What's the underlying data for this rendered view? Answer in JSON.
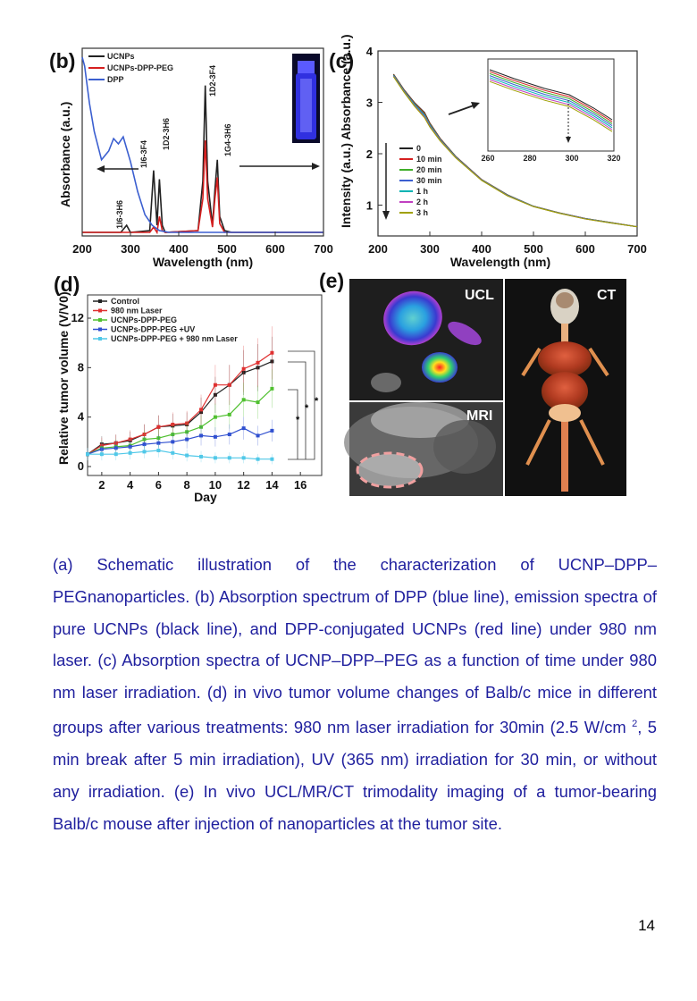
{
  "figure": {
    "panel_b": {
      "label": "(b)",
      "legend": [
        "UCNPs",
        "UCNPs-DPP-PEG",
        "DPP"
      ],
      "colors": {
        "UCNPs": "#222222",
        "UCNPs-DPP-PEG": "#d62020",
        "DPP": "#3b5fd0"
      },
      "xlabel": "Wavelength (nm)",
      "ylabel": "Absorbance (a.u.)",
      "xticks": [
        "200",
        "300",
        "400",
        "500",
        "600",
        "700"
      ],
      "transitions": [
        "1I6-3H6",
        "1I6-3F4",
        "1D2-3H6",
        "1D2-3F4",
        "1G4-3H6"
      ]
    },
    "panel_c": {
      "label": "(c)",
      "ylabel": "Intensity (a.u.) Absorbance (a.u.)",
      "xlabel": "Wavelength (nm)",
      "xticks": [
        "200",
        "300",
        "400",
        "500",
        "600",
        "700"
      ],
      "yticks": [
        "1",
        "2",
        "3",
        "4"
      ],
      "legend": [
        "0",
        "10 min",
        "20 min",
        "30 min",
        "1 h",
        "2 h",
        "3 h"
      ],
      "colors": [
        "#222222",
        "#d62020",
        "#3fae2a",
        "#3b5fd0",
        "#00b3b3",
        "#c040c0",
        "#a0a000"
      ],
      "inset_xticks": [
        "260",
        "280",
        "300",
        "320"
      ]
    },
    "panel_d": {
      "label": "(d)",
      "ylabel": "Relative tumor volume (V/V0)",
      "xlabel": "Day",
      "xticks": [
        "2",
        "4",
        "6",
        "8",
        "10",
        "12",
        "14",
        "16"
      ],
      "yticks": [
        "0",
        "4",
        "8",
        "12"
      ],
      "significance": [
        "*",
        "*",
        "*"
      ]
    },
    "panel_e": {
      "label": "(e)",
      "labels": [
        "UCL",
        "CT",
        "MRI"
      ]
    }
  },
  "chart_data": [
    {
      "type": "line",
      "title": "",
      "xlabel": "Wavelength (nm)",
      "ylabel": "Absorbance (a.u.)",
      "xlim": [
        200,
        700
      ],
      "series": [
        {
          "name": "UCNPs",
          "x": [
            200,
            280,
            292,
            300,
            340,
            348,
            355,
            360,
            366,
            372,
            440,
            450,
            455,
            460,
            470,
            475,
            480,
            485,
            495,
            510,
            700
          ],
          "values": [
            0.01,
            0.01,
            0.05,
            0.01,
            0.02,
            0.36,
            0.05,
            0.31,
            0.05,
            0.01,
            0.02,
            0.3,
            0.84,
            0.3,
            0.05,
            0.25,
            0.42,
            0.1,
            0.02,
            0.01,
            0.01
          ]
        },
        {
          "name": "UCNPs-DPP-PEG",
          "x": [
            200,
            340,
            348,
            355,
            360,
            366,
            372,
            440,
            450,
            455,
            460,
            470,
            475,
            480,
            485,
            495,
            700
          ],
          "values": [
            0.01,
            0.01,
            0.04,
            0.01,
            0.1,
            0.02,
            0.01,
            0.02,
            0.2,
            0.53,
            0.2,
            0.04,
            0.2,
            0.32,
            0.06,
            0.01,
            0.01
          ]
        },
        {
          "name": "DPP",
          "x": [
            200,
            205,
            215,
            225,
            240,
            255,
            265,
            275,
            285,
            300,
            315,
            330,
            345,
            360,
            380,
            400,
            700
          ],
          "values": [
            1.0,
            0.95,
            0.74,
            0.58,
            0.42,
            0.47,
            0.54,
            0.51,
            0.55,
            0.41,
            0.24,
            0.11,
            0.05,
            0.02,
            0.01,
            0.01,
            0.01
          ]
        }
      ]
    },
    {
      "type": "line",
      "title": "",
      "xlabel": "Wavelength (nm)",
      "ylabel": "Absorbance (a.u.)",
      "xlim": [
        200,
        700
      ],
      "ylim": [
        0.4,
        4
      ],
      "x": [
        230,
        250,
        270,
        290,
        300,
        320,
        350,
        400,
        450,
        500,
        550,
        600,
        650,
        700
      ],
      "series": [
        {
          "name": "0",
          "values": [
            3.55,
            3.25,
            3.0,
            2.8,
            2.6,
            2.3,
            1.95,
            1.5,
            1.2,
            0.98,
            0.85,
            0.74,
            0.66,
            0.58
          ]
        },
        {
          "name": "3 h",
          "values": [
            3.5,
            3.2,
            2.93,
            2.7,
            2.52,
            2.25,
            1.92,
            1.48,
            1.18,
            0.97,
            0.84,
            0.73,
            0.65,
            0.58
          ]
        }
      ]
    },
    {
      "type": "line",
      "title": "",
      "xlabel": "Day",
      "ylabel": "Relative tumor volume (V/V0)",
      "xlim": [
        1,
        16
      ],
      "ylim": [
        0,
        13
      ],
      "x": [
        1,
        2,
        3,
        4,
        5,
        6,
        7,
        8,
        9,
        10,
        11,
        12,
        13,
        14
      ],
      "series": [
        {
          "name": "Control",
          "values": [
            1.0,
            1.8,
            1.9,
            2.1,
            2.6,
            3.2,
            3.3,
            3.4,
            4.4,
            5.8,
            6.6,
            7.6,
            8.0,
            8.5
          ]
        },
        {
          "name": "980 nm Laser",
          "values": [
            1.0,
            1.7,
            1.9,
            2.2,
            2.6,
            3.2,
            3.4,
            3.5,
            4.6,
            6.6,
            6.6,
            7.9,
            8.4,
            9.2
          ]
        },
        {
          "name": "UCNPs-DPP-PEG",
          "values": [
            1.0,
            1.5,
            1.6,
            1.7,
            2.2,
            2.3,
            2.6,
            2.8,
            3.2,
            4.0,
            4.2,
            5.4,
            5.2,
            6.3
          ]
        },
        {
          "name": "UCNPs-DPP-PEG +UV",
          "values": [
            1.0,
            1.4,
            1.5,
            1.6,
            1.8,
            1.9,
            2.0,
            2.2,
            2.5,
            2.4,
            2.6,
            3.1,
            2.5,
            2.9
          ]
        },
        {
          "name": "UCNPs-DPP-PEG + 980 nm Laser",
          "values": [
            1.0,
            1.0,
            1.0,
            1.1,
            1.2,
            1.3,
            1.1,
            0.9,
            0.8,
            0.7,
            0.7,
            0.7,
            0.6,
            0.6
          ]
        }
      ]
    }
  ],
  "caption": {
    "text_before_sup": "(a) Schematic illustration of the characterization of UCNP–DPP–PEGnanoparticles. (b) Absorption spectrum of DPP (blue line), emission spectra of pure UCNPs (black line), and DPP-conjugated UCNPs (red line) under 980 nm laser. (c) Absorption spectra of UCNP–DPP–PEG as a function of time under 980 nm laser irradiation. (d) in vivo tumor volume changes of Balb/c mice in different groups after various treatments: 980 nm laser irradiation for 30min (2.5 W/cm ",
    "sup": "2",
    "text_after_sup": ", 5 min break after 5 min irradiation), UV (365 nm) irradiation for 30 min, or without any irradiation. (e) In vivo UCL/MR/CT trimodality imaging of a tumor-bearing Balb/c mouse after injection of nanoparticles at the tumor site."
  },
  "page_number": "14"
}
